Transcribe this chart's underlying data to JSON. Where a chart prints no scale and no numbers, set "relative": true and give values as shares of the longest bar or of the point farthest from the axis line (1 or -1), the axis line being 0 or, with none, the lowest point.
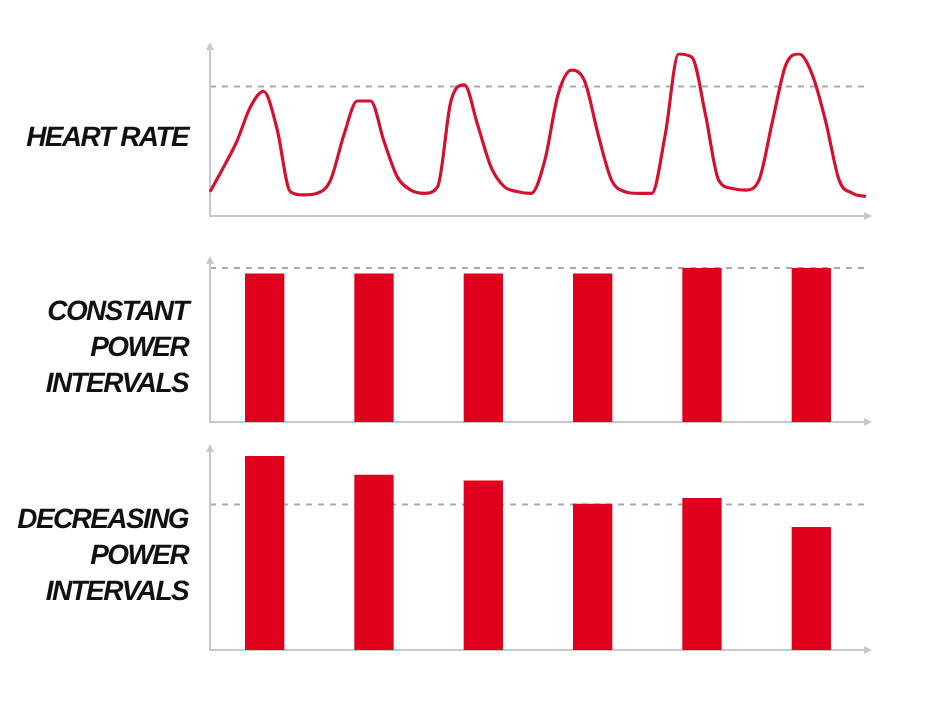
{
  "chart_data": [
    {
      "type": "line",
      "ylabel": "HEART RATE",
      "relative": true,
      "marker": "none",
      "categories": [
        null,
        null,
        null,
        null,
        null,
        null,
        null,
        null,
        null,
        null,
        null,
        null,
        null,
        null,
        null,
        null,
        null,
        null,
        null,
        null,
        null,
        null,
        null,
        null,
        null,
        null,
        null,
        null,
        null,
        null,
        null,
        null,
        null,
        null,
        null,
        null,
        null,
        null,
        null,
        null,
        null,
        null,
        null,
        null,
        null,
        null,
        null,
        null,
        null,
        null
      ],
      "series": [
        {
          "color": "#d4112e",
          "values": [
            0.15,
            0.3,
            0.46,
            0.67,
            0.77,
            0.54,
            0.15,
            0.13,
            0.14,
            0.22,
            0.5,
            0.71,
            0.71,
            0.46,
            0.24,
            0.16,
            0.14,
            0.18,
            0.71,
            0.81,
            0.56,
            0.3,
            0.18,
            0.15,
            0.14,
            0.34,
            0.75,
            0.9,
            0.83,
            0.5,
            0.22,
            0.15,
            0.14,
            0.14,
            0.5,
            1.0,
            0.98,
            0.63,
            0.22,
            0.17,
            0.16,
            0.22,
            0.58,
            0.93,
            1.0,
            0.87,
            0.58,
            0.22,
            0.14,
            0.12
          ]
        }
      ],
      "ref_lines": [
        {
          "axis": "y",
          "value": 0.8,
          "color": "#aaaaaa",
          "line_style": "dashed"
        }
      ]
    },
    {
      "type": "bar",
      "ylabel": "CONSTANT\nPOWER\nINTERVALS",
      "relative": true,
      "categories": [
        null,
        null,
        null,
        null,
        null,
        null
      ],
      "series": [
        {
          "color": "#e0001b",
          "values": [
            0.96,
            0.96,
            0.96,
            0.96,
            1,
            1
          ]
        }
      ],
      "ref_lines": [
        {
          "axis": "y",
          "value": 1,
          "color": "#aaaaaa",
          "line_style": "dashed"
        }
      ]
    },
    {
      "type": "bar",
      "ylabel": "DECREASING\nPOWER\nINTERVALS",
      "relative": true,
      "categories": [
        null,
        null,
        null,
        null,
        null,
        null
      ],
      "series": [
        {
          "color": "#e0001b",
          "values": [
            1,
            0.9,
            0.87,
            0.75,
            0.78,
            0.63
          ]
        }
      ],
      "ref_lines": [
        {
          "axis": "y",
          "value": 0.75,
          "color": "#aaaaaa",
          "line_style": "dashed"
        }
      ]
    }
  ]
}
